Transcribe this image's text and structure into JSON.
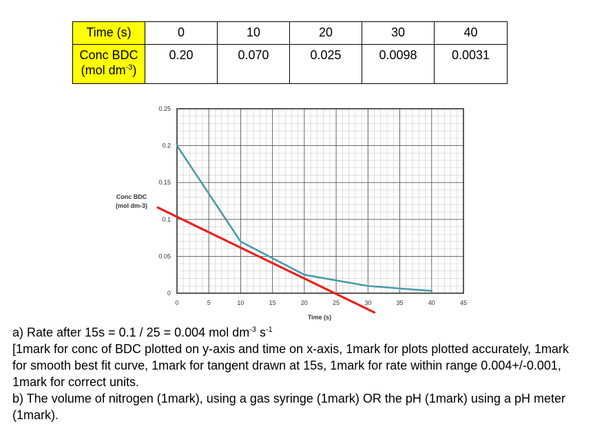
{
  "table": {
    "row1": {
      "label": "Time (s)",
      "values": [
        "0",
        "10",
        "20",
        "30",
        "40"
      ]
    },
    "row2": {
      "label_main": "Conc BDC",
      "label_unit_pre": "(mol dm",
      "label_unit_sup": "-3",
      "label_unit_post": ")",
      "values": [
        "0.20",
        "0.070",
        "0.025",
        "0.0098",
        "0.0031"
      ]
    }
  },
  "chart_data": {
    "type": "line",
    "xlabel": "Time (s)",
    "ylabel": "Conc  BDC\n(mol dm-3)",
    "xlim": [
      0,
      45
    ],
    "ylim": [
      0,
      0.25
    ],
    "x_ticks": [
      "0",
      "5",
      "10",
      "15",
      "20",
      "25",
      "30",
      "35",
      "40",
      "45"
    ],
    "y_ticks": [
      "0",
      "0.05",
      "0.1",
      "0.15",
      "0.2",
      "0.25"
    ],
    "grid": true,
    "series": [
      {
        "x": [
          0,
          10,
          20,
          30,
          40
        ],
        "y": [
          0.2,
          0.07,
          0.025,
          0.0098,
          0.0031
        ],
        "color": "#4a9aaa"
      },
      {
        "x": [
          -3,
          31
        ],
        "y": [
          0.116,
          -0.026
        ],
        "color": "#e8201c"
      }
    ]
  },
  "answer": {
    "a_pre": "a) Rate after 15s = 0.1 / 25 = 0.004 mol dm",
    "a_sup1": "-3",
    "a_mid": " s",
    "a_sup2": "-1",
    "marks": "[1mark for conc of BDC plotted on y-axis and time on x-axis, 1mark for plots plotted accurately, 1mark for smooth best fit curve, 1mark for tangent drawn at 15s, 1mark for rate within range 0.004+/-0.001, 1mark for correct units.",
    "b": "b) The volume of nitrogen (1mark), using a gas syringe (1mark) OR the pH (1mark) using a pH meter (1mark)."
  }
}
